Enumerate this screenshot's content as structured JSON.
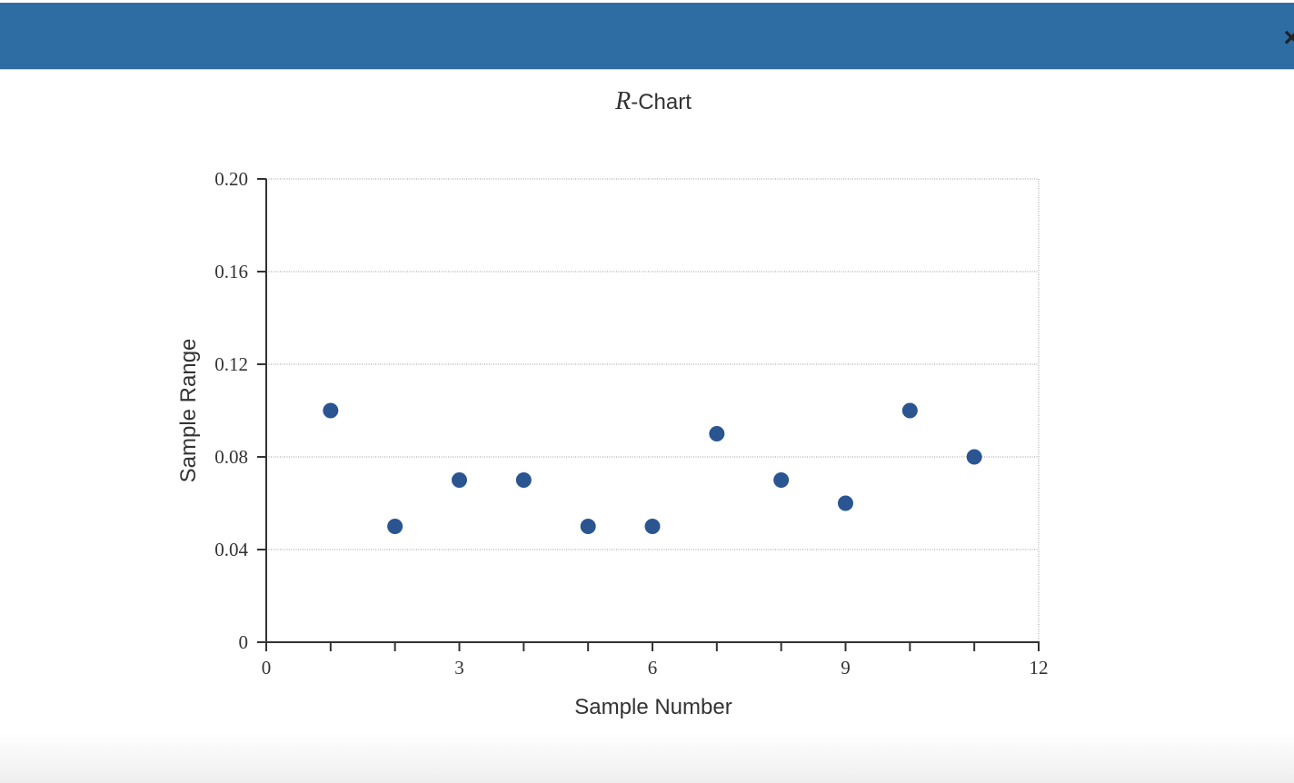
{
  "close_label": "×",
  "chart_data": {
    "type": "scatter",
    "title": "R-Chart",
    "x_label": "Sample Number",
    "y_label": "Sample Range",
    "x": [
      1,
      2,
      3,
      4,
      5,
      6,
      7,
      8,
      9,
      10,
      11
    ],
    "values": [
      0.1,
      0.05,
      0.07,
      0.07,
      0.05,
      0.05,
      0.09,
      0.07,
      0.06,
      0.1,
      0.08
    ],
    "color": "#2a5591",
    "xlim": [
      0,
      12
    ],
    "xticks": [
      0,
      3,
      6,
      9,
      12
    ],
    "xminorticks": [
      1,
      2,
      4,
      5,
      7,
      8,
      10,
      11
    ],
    "ylim": [
      0,
      0.2
    ],
    "yticks": [
      0,
      0.04,
      0.08,
      0.12,
      0.16,
      {
        "value": 0.2,
        "label": "0.20"
      }
    ],
    "grid": true
  }
}
